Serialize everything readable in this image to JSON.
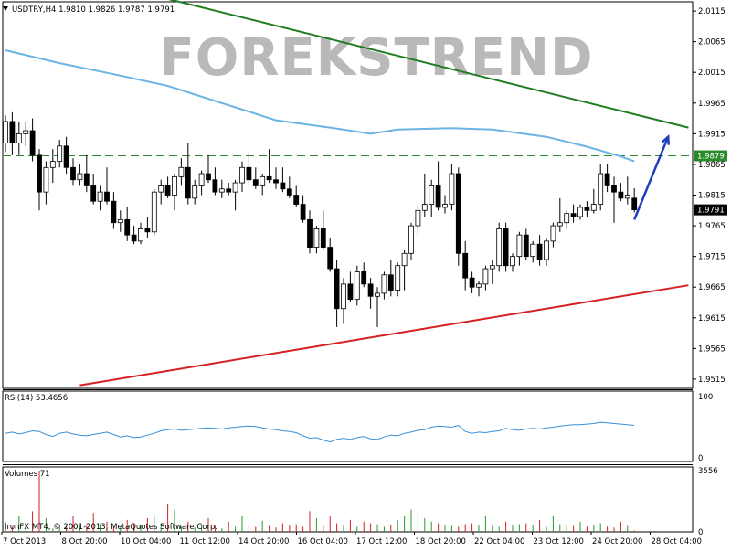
{
  "header": {
    "symbol_info": "USDTRY,H4  1.9810 1.9826 1.9787 1.9791",
    "watermark": "FOREKSTREND"
  },
  "colors": {
    "background": "#ffffff",
    "bull_candle": "#ffffff",
    "bear_candle": "#000000",
    "ma": "#6cb4e4",
    "resistance": "#1e7d1e",
    "support": "#d42020",
    "arrow": "#1f3fbf",
    "hline": "#2a8a2a",
    "rsi": "#3a8fd6",
    "vol_up": "#2a9a2a",
    "vol_down": "#d02020"
  },
  "chart_data": [
    {
      "type": "candlestick",
      "title": "USDTRY,H4",
      "ylim": [
        1.95,
        2.013
      ],
      "yticks": [
        "2.0115",
        "2.0065",
        "2.0015",
        "1.9965",
        "1.9915",
        "1.9865",
        "1.9815",
        "1.9765",
        "1.9715",
        "1.9665",
        "1.9615",
        "1.9565",
        "1.9515"
      ],
      "price_labels": [
        {
          "value": 1.9879,
          "text": "1.9879",
          "color": "#2a8a2a"
        },
        {
          "value": 1.9791,
          "text": "1.9791",
          "color": "#000000"
        }
      ],
      "xticks": [
        "7 Oct 2013",
        "8 Oct 20:00",
        "10 Oct 04:00",
        "11 Oct 12:00",
        "14 Oct 20:00",
        "16 Oct 04:00",
        "17 Oct 12:00",
        "18 Oct 20:00",
        "22 Oct 04:00",
        "23 Oct 12:00",
        "24 Oct 20:00",
        "28 Oct 04:00"
      ],
      "candles": [
        [
          1.99,
          1.9945,
          1.9885,
          1.9935
        ],
        [
          1.9935,
          1.995,
          1.988,
          1.99
        ],
        [
          1.99,
          1.9935,
          1.988,
          1.9915
        ],
        [
          1.9915,
          1.9935,
          1.9895,
          1.992
        ],
        [
          1.992,
          1.994,
          1.987,
          1.988
        ],
        [
          1.988,
          1.989,
          1.979,
          1.982
        ],
        [
          1.982,
          1.987,
          1.98,
          1.986
        ],
        [
          1.986,
          1.989,
          1.9835,
          1.987
        ],
        [
          1.987,
          1.9905,
          1.986,
          1.9895
        ],
        [
          1.9895,
          1.991,
          1.985,
          1.986
        ],
        [
          1.986,
          1.9875,
          1.983,
          1.984
        ],
        [
          1.984,
          1.9865,
          1.983,
          1.985
        ],
        [
          1.985,
          1.988,
          1.982,
          1.983
        ],
        [
          1.983,
          1.985,
          1.98,
          1.9805
        ],
        [
          1.9805,
          1.983,
          1.979,
          1.982
        ],
        [
          1.982,
          1.986,
          1.98,
          1.9805
        ],
        [
          1.9805,
          1.982,
          1.976,
          1.977
        ],
        [
          1.977,
          1.979,
          1.9755,
          1.9775
        ],
        [
          1.9775,
          1.9795,
          1.974,
          1.975
        ],
        [
          1.975,
          1.9765,
          1.9735,
          1.974
        ],
        [
          1.974,
          1.977,
          1.9735,
          1.976
        ],
        [
          1.976,
          1.978,
          1.9745,
          1.9755
        ],
        [
          1.9755,
          1.9825,
          1.975,
          1.982
        ],
        [
          1.982,
          1.984,
          1.98,
          1.983
        ],
        [
          1.983,
          1.9845,
          1.981,
          1.9815
        ],
        [
          1.9815,
          1.985,
          1.979,
          1.9845
        ],
        [
          1.9845,
          1.9875,
          1.983,
          1.986
        ],
        [
          1.986,
          1.99,
          1.98,
          1.981
        ],
        [
          1.981,
          1.984,
          1.98,
          1.983
        ],
        [
          1.983,
          1.9855,
          1.9815,
          1.985
        ],
        [
          1.985,
          1.988,
          1.9835,
          1.984
        ],
        [
          1.984,
          1.986,
          1.9815,
          1.982
        ],
        [
          1.982,
          1.984,
          1.981,
          1.9825
        ],
        [
          1.9825,
          1.9835,
          1.9815,
          1.982
        ],
        [
          1.982,
          1.984,
          1.979,
          1.9835
        ],
        [
          1.9835,
          1.987,
          1.982,
          1.986
        ],
        [
          1.986,
          1.9885,
          1.983,
          1.984
        ],
        [
          1.984,
          1.986,
          1.9825,
          1.983
        ],
        [
          1.983,
          1.985,
          1.9815,
          1.9845
        ],
        [
          1.9845,
          1.989,
          1.9835,
          1.984
        ],
        [
          1.984,
          1.986,
          1.9825,
          1.9835
        ],
        [
          1.9835,
          1.986,
          1.982,
          1.9825
        ],
        [
          1.9825,
          1.9845,
          1.981,
          1.9815
        ],
        [
          1.9815,
          1.983,
          1.9795,
          1.98
        ],
        [
          1.98,
          1.9815,
          1.977,
          1.9775
        ],
        [
          1.9775,
          1.979,
          1.972,
          1.973
        ],
        [
          1.973,
          1.9765,
          1.972,
          1.976
        ],
        [
          1.976,
          1.979,
          1.9725,
          1.973
        ],
        [
          1.973,
          1.9745,
          1.969,
          1.9695
        ],
        [
          1.9695,
          1.971,
          1.96,
          1.963
        ],
        [
          1.963,
          1.968,
          1.9605,
          1.967
        ],
        [
          1.967,
          1.969,
          1.964,
          1.9645
        ],
        [
          1.9645,
          1.97,
          1.9635,
          1.969
        ],
        [
          1.969,
          1.9705,
          1.9665,
          1.967
        ],
        [
          1.967,
          1.968,
          1.963,
          1.965
        ],
        [
          1.965,
          1.9665,
          1.96,
          1.9655
        ],
        [
          1.9655,
          1.969,
          1.9645,
          1.9685
        ],
        [
          1.9685,
          1.971,
          1.965,
          1.966
        ],
        [
          1.966,
          1.9705,
          1.965,
          1.97
        ],
        [
          1.97,
          1.9725,
          1.966,
          1.972
        ],
        [
          1.972,
          1.977,
          1.971,
          1.9765
        ],
        [
          1.9765,
          1.98,
          1.975,
          1.979
        ],
        [
          1.979,
          1.985,
          1.978,
          1.98
        ],
        [
          1.98,
          1.984,
          1.978,
          1.983
        ],
        [
          1.983,
          1.987,
          1.979,
          1.9795
        ],
        [
          1.9795,
          1.9815,
          1.9785,
          1.98
        ],
        [
          1.98,
          1.9865,
          1.979,
          1.985
        ],
        [
          1.985,
          1.986,
          1.97,
          1.972
        ],
        [
          1.972,
          1.974,
          1.966,
          1.968
        ],
        [
          1.968,
          1.969,
          1.9655,
          1.9665
        ],
        [
          1.9665,
          1.9675,
          1.965,
          1.967
        ],
        [
          1.967,
          1.97,
          1.966,
          1.9695
        ],
        [
          1.9695,
          1.971,
          1.967,
          1.97
        ],
        [
          1.97,
          1.977,
          1.969,
          1.976
        ],
        [
          1.976,
          1.977,
          1.969,
          1.97
        ],
        [
          1.97,
          1.972,
          1.969,
          1.9715
        ],
        [
          1.9715,
          1.9755,
          1.97,
          1.975
        ],
        [
          1.975,
          1.976,
          1.971,
          1.9715
        ],
        [
          1.9715,
          1.974,
          1.9705,
          1.9735
        ],
        [
          1.9735,
          1.975,
          1.97,
          1.971
        ],
        [
          1.971,
          1.9745,
          1.97,
          1.974
        ],
        [
          1.974,
          1.977,
          1.973,
          1.9765
        ],
        [
          1.9765,
          1.981,
          1.9755,
          1.977
        ],
        [
          1.977,
          1.979,
          1.976,
          1.9785
        ],
        [
          1.9785,
          1.98,
          1.977,
          1.978
        ],
        [
          1.978,
          1.98,
          1.9775,
          1.9795
        ],
        [
          1.9795,
          1.9805,
          1.978,
          1.979
        ],
        [
          1.979,
          1.9825,
          1.9785,
          1.98
        ],
        [
          1.98,
          1.9865,
          1.979,
          1.985
        ],
        [
          1.985,
          1.9865,
          1.982,
          1.983
        ],
        [
          1.983,
          1.9845,
          1.977,
          1.982
        ],
        [
          1.982,
          1.9835,
          1.9805,
          1.981
        ],
        [
          1.981,
          1.9845,
          1.98,
          1.9815
        ],
        [
          1.981,
          1.9826,
          1.9787,
          1.9791
        ]
      ],
      "ma": [
        {
          "x": 0,
          "y": 2.0051
        },
        {
          "x": 8,
          "y": 2.003
        },
        {
          "x": 16,
          "y": 2.0012
        },
        {
          "x": 24,
          "y": 1.9993
        },
        {
          "x": 32,
          "y": 1.9965
        },
        {
          "x": 40,
          "y": 1.9937
        },
        {
          "x": 48,
          "y": 1.9925
        },
        {
          "x": 54,
          "y": 1.9915
        },
        {
          "x": 58,
          "y": 1.9922
        },
        {
          "x": 66,
          "y": 1.9924
        },
        {
          "x": 72,
          "y": 1.9922
        },
        {
          "x": 80,
          "y": 1.991
        },
        {
          "x": 86,
          "y": 1.9894
        },
        {
          "x": 91,
          "y": 1.9878
        },
        {
          "x": 93,
          "y": 1.987
        }
      ],
      "resistance_line": [
        {
          "x": 0,
          "y": 2.02
        },
        {
          "x": 101,
          "y": 1.9925
        }
      ],
      "support_line": [
        {
          "x": 11,
          "y": 1.9505
        },
        {
          "x": 101,
          "y": 1.9668
        }
      ],
      "horizontal_level": 1.9879,
      "arrow": {
        "from": [
          93,
          1.9775
        ],
        "to": [
          98,
          1.991
        ]
      }
    },
    {
      "type": "line",
      "title": "RSI(14) 53.4656",
      "ylim": [
        0,
        100
      ],
      "yticks": [
        "100",
        "0"
      ],
      "values": [
        40,
        42,
        39,
        41,
        44,
        43,
        38,
        35,
        40,
        42,
        39,
        37,
        36,
        38,
        40,
        42,
        38,
        34,
        36,
        33,
        34,
        37,
        40,
        44,
        46,
        47,
        45,
        46,
        47,
        48,
        49,
        48,
        47,
        49,
        50,
        51,
        52,
        51,
        49,
        47,
        46,
        44,
        43,
        41,
        36,
        32,
        33,
        29,
        26,
        30,
        32,
        30,
        33,
        35,
        31,
        30,
        34,
        37,
        36,
        40,
        42,
        45,
        46,
        50,
        52,
        51,
        50,
        53,
        43,
        40,
        42,
        41,
        43,
        44,
        48,
        46,
        45,
        47,
        48,
        47,
        49,
        50,
        52,
        53,
        54,
        54,
        55,
        56,
        58,
        57,
        56,
        55,
        54,
        53
      ]
    },
    {
      "type": "bar",
      "title": "Volumes 71",
      "ylim": [
        0,
        3556
      ],
      "yticks": [
        "3556",
        "0"
      ],
      "values": [
        600,
        300,
        900,
        350,
        1200,
        3556,
        800,
        200,
        400,
        300,
        900,
        400,
        350,
        1100,
        450,
        600,
        300,
        250,
        700,
        500,
        400,
        800,
        900,
        500,
        1600,
        1300,
        300,
        600,
        250,
        400,
        800,
        350,
        200,
        600,
        300,
        900,
        400,
        300,
        650,
        350,
        250,
        500,
        400,
        450,
        300,
        1200,
        800,
        350,
        900,
        500,
        400,
        700,
        300,
        600,
        500,
        450,
        300,
        400,
        700,
        900,
        1300,
        1100,
        800,
        600,
        500,
        400,
        350,
        300,
        450,
        500,
        400,
        900,
        350,
        300,
        600,
        400,
        450,
        500,
        400,
        700,
        300,
        900,
        450,
        400,
        350,
        600,
        300,
        400,
        500,
        300,
        250,
        600,
        350,
        71
      ],
      "watermark_text": "IronFX MT4, © 2001-2013, MetaQuotes Software Corp."
    }
  ]
}
